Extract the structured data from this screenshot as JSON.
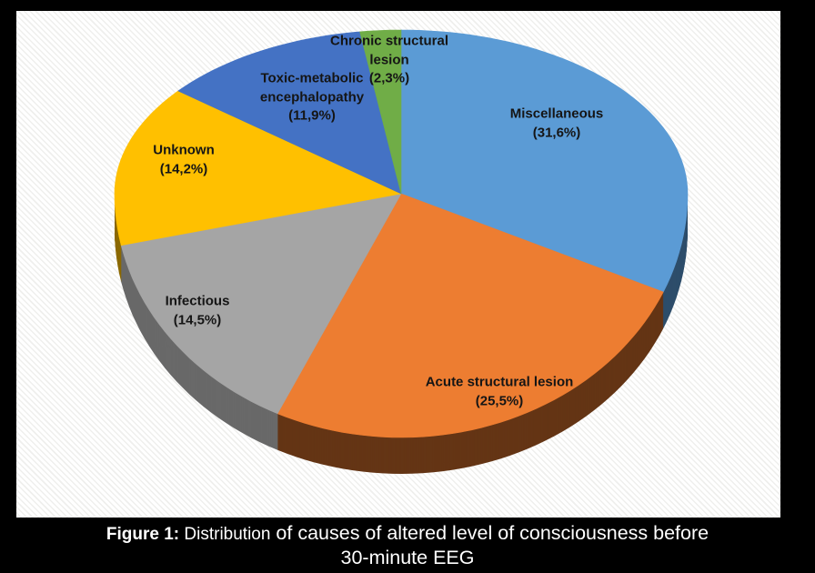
{
  "chart_data": {
    "type": "pie",
    "style": "3d",
    "title": "",
    "legend": "none",
    "data_labels": "category_and_percent",
    "start_angle_deg": 0,
    "direction": "clockwise",
    "labels": [
      "Miscellaneous",
      "Acute structural lesion",
      "Infectious",
      "Unknown",
      "Toxic-metabolic encephalopathy",
      "Chronic structural lesion"
    ],
    "values": [
      31.6,
      25.5,
      14.5,
      14.2,
      11.9,
      2.3
    ],
    "value_display": [
      "(31,6%)",
      "(25,5%)",
      "(14,5%)",
      "(14,2%)",
      "(11,9%)",
      "(2,3%)"
    ],
    "label_lines": [
      [
        "Miscellaneous",
        "(31,6%)"
      ],
      [
        "Acute structural lesion",
        "(25,5%)"
      ],
      [
        "Infectious",
        "(14,5%)"
      ],
      [
        "Unknown",
        "(14,2%)"
      ],
      [
        "Toxic-metabolic",
        "encephalopathy",
        "(11,9%)"
      ],
      [
        "Chronic structural",
        "lesion",
        "(2,3%)"
      ]
    ],
    "colors": [
      "#5B9BD5",
      "#ED7D31",
      "#A5A5A5",
      "#FFC000",
      "#4472C4",
      "#70AD47"
    ],
    "side_colors": [
      "#2E4E6B",
      "#643515",
      "#696969",
      "#8C6900",
      "#263F6E",
      "#3E6027"
    ]
  },
  "caption": {
    "figure_label": "Figure 1:",
    "part1": " Distribution",
    "part2": " of causes of altered level of consciousness before",
    "line2": "30-minute EEG"
  }
}
